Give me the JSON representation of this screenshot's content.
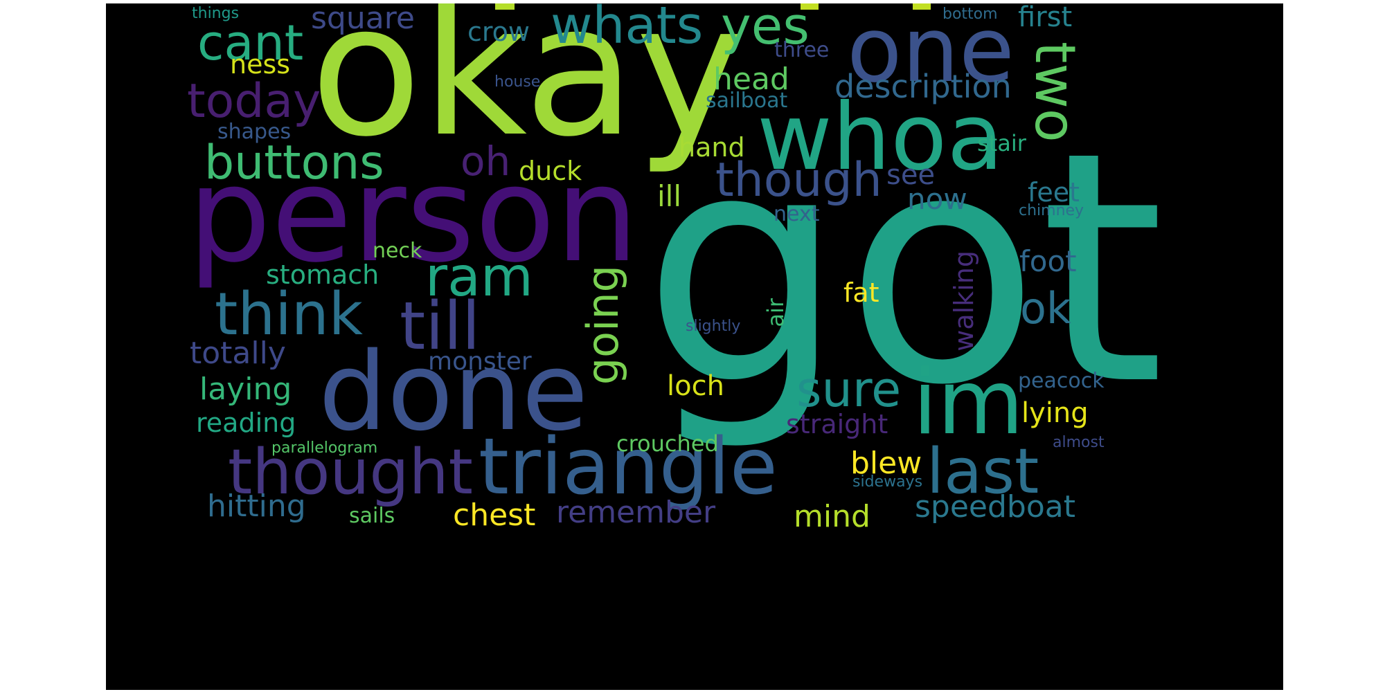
{
  "colors": {
    "background": "#000000",
    "page": "#ffffff",
    "yellow_green": "#8fd744",
    "lime": "#addc30",
    "yellow": "#e0e320",
    "green": "#4ac16d",
    "teal_green": "#1fa187",
    "teal": "#277f8e",
    "blue": "#365c8d",
    "indigo": "#46327e",
    "purple": "#440154"
  },
  "words": [
    {
      "text": "okay",
      "color": "#9fd938"
    },
    {
      "text": "got",
      "color": "#1fa187"
    },
    {
      "text": "person",
      "color": "#440f76"
    },
    {
      "text": "whoa",
      "color": "#21a585"
    },
    {
      "text": "one",
      "color": "#3b528b"
    },
    {
      "text": "done",
      "color": "#3b528b"
    },
    {
      "text": "triangle",
      "color": "#355f8d"
    },
    {
      "text": "thought",
      "color": "#453781"
    },
    {
      "text": "im",
      "color": "#20a386"
    },
    {
      "text": "last",
      "color": "#2d708e"
    },
    {
      "text": "till",
      "color": "#414487"
    },
    {
      "text": "think",
      "color": "#2c728e"
    },
    {
      "text": "ram",
      "color": "#22a884"
    },
    {
      "text": "two",
      "color": "#5ec962"
    },
    {
      "text": "yes",
      "color": "#44bf70"
    },
    {
      "text": "whats",
      "color": "#23888e"
    },
    {
      "text": "cant",
      "color": "#27ad81"
    },
    {
      "text": "today",
      "color": "#481f70"
    },
    {
      "text": "buttons",
      "color": "#3fbc73"
    },
    {
      "text": "though",
      "color": "#3b528b"
    },
    {
      "text": "oh",
      "color": "#482173"
    },
    {
      "text": "going",
      "color": "#7ad151"
    },
    {
      "text": "sure",
      "color": "#21918c"
    },
    {
      "text": "ok",
      "color": "#2c728e"
    },
    {
      "text": "description",
      "color": "#31688e"
    },
    {
      "text": "square",
      "color": "#3e4a89"
    },
    {
      "text": "head",
      "color": "#5ec962"
    },
    {
      "text": "crow",
      "color": "#2a788e"
    },
    {
      "text": "first",
      "color": "#26828e"
    },
    {
      "text": "ness",
      "color": "#d5e21a"
    },
    {
      "text": "three",
      "color": "#3e4c8a"
    },
    {
      "text": "sailboat",
      "color": "#2a768e"
    },
    {
      "text": "shapes",
      "color": "#38598c"
    },
    {
      "text": "house",
      "color": "#3a548c"
    },
    {
      "text": "things",
      "color": "#1f9a8a"
    },
    {
      "text": "bottom",
      "color": "#2f6c8e"
    },
    {
      "text": "hand",
      "color": "#a8db34"
    },
    {
      "text": "duck",
      "color": "#b5de2b"
    },
    {
      "text": "stair",
      "color": "#29af7f"
    },
    {
      "text": "see",
      "color": "#3d4e8a"
    },
    {
      "text": "ill",
      "color": "#9bd93c"
    },
    {
      "text": "now",
      "color": "#2d708e"
    },
    {
      "text": "feet",
      "color": "#2a788e"
    },
    {
      "text": "chimney",
      "color": "#2d708e"
    },
    {
      "text": "next",
      "color": "#33638d"
    },
    {
      "text": "neck",
      "color": "#73d056"
    },
    {
      "text": "stomach",
      "color": "#28ae80"
    },
    {
      "text": "foot",
      "color": "#31688e"
    },
    {
      "text": "fat",
      "color": "#fde725"
    },
    {
      "text": "walking",
      "color": "#472d7b"
    },
    {
      "text": "air",
      "color": "#3dbc74"
    },
    {
      "text": "slightly",
      "color": "#3b528b"
    },
    {
      "text": "totally",
      "color": "#3e4989"
    },
    {
      "text": "monster",
      "color": "#39558c"
    },
    {
      "text": "laying",
      "color": "#35b779"
    },
    {
      "text": "loch",
      "color": "#d8e219"
    },
    {
      "text": "peacock",
      "color": "#33638d"
    },
    {
      "text": "reading",
      "color": "#22a884"
    },
    {
      "text": "lying",
      "color": "#e5e419"
    },
    {
      "text": "straight",
      "color": "#482878"
    },
    {
      "text": "crouched",
      "color": "#5ec962"
    },
    {
      "text": "parallelogram",
      "color": "#54c568"
    },
    {
      "text": "almost",
      "color": "#3e4c8a"
    },
    {
      "text": "blew",
      "color": "#fde725"
    },
    {
      "text": "sideways",
      "color": "#2c728e"
    },
    {
      "text": "hitting",
      "color": "#2f6c8e"
    },
    {
      "text": "sails",
      "color": "#5ec962"
    },
    {
      "text": "chest",
      "color": "#fde725"
    },
    {
      "text": "remember",
      "color": "#433e85"
    },
    {
      "text": "mind",
      "color": "#b5de2b"
    },
    {
      "text": "speedboat",
      "color": "#2a788e"
    }
  ]
}
